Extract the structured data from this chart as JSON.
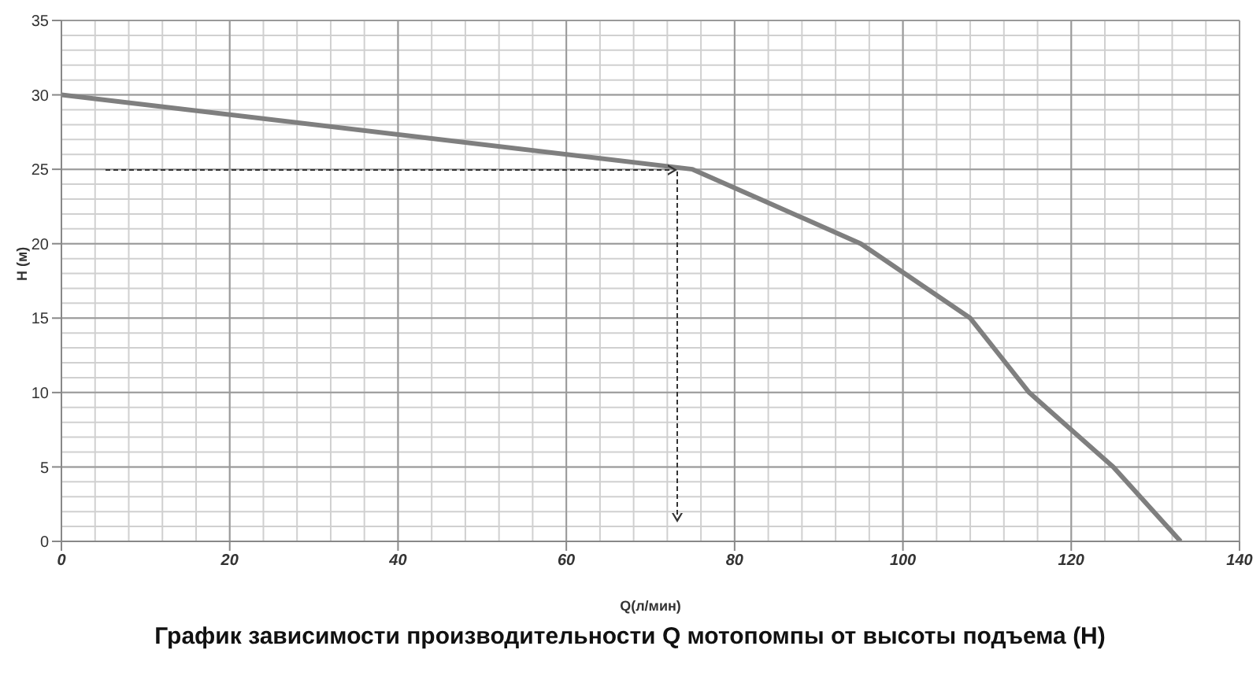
{
  "chart_data": {
    "type": "line",
    "title": "График зависимости производительности Q мотопомпы от высоты подъема (Н)",
    "xlabel": "Q(л/мин)",
    "ylabel": "H (м)",
    "x": [
      0,
      75,
      95,
      108,
      115,
      125,
      133
    ],
    "series": [
      {
        "color": "#7f7f7f",
        "values": [
          30,
          25,
          20,
          15,
          10,
          5,
          0
        ]
      }
    ],
    "xlim": [
      0,
      140
    ],
    "xticks": [
      0,
      20,
      40,
      60,
      80,
      100,
      120,
      140
    ],
    "ylim": [
      0,
      35
    ],
    "yticks": [
      0,
      5,
      10,
      15,
      20,
      25,
      30,
      35
    ],
    "grid": true,
    "marker": "none",
    "line_style": "solid"
  }
}
